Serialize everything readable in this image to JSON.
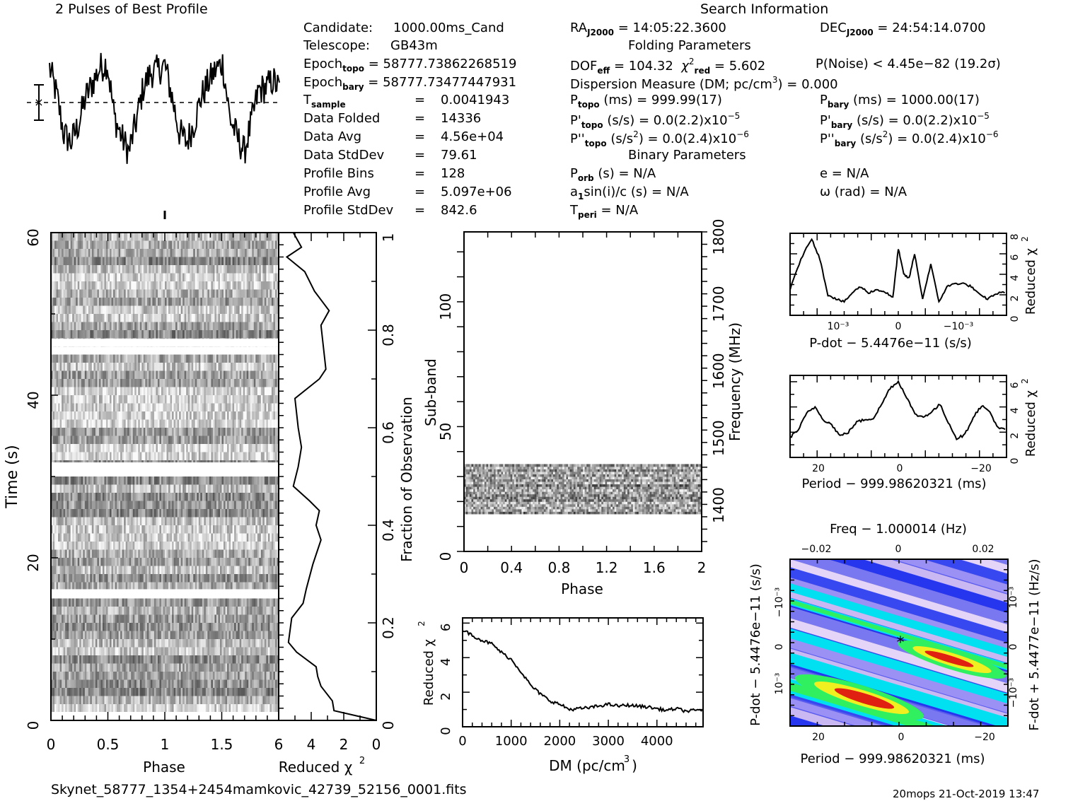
{
  "title_profile": "2 Pulses of Best Profile",
  "search_info": {
    "title": "Search Information",
    "candidate_label": "Candidate:",
    "candidate": "1000.00ms_Cand",
    "telescope_label": "Telescope:",
    "telescope": "GB43m",
    "epoch_topo_label": "Epoch",
    "epoch_topo_sub": "topo",
    "epoch_topo": "= 58777.7386226851​9",
    "epoch_bary_label": "Epoch",
    "epoch_bary_sub": "bary",
    "epoch_bary": "= 58777.7347744793​1",
    "tsample_label": "T",
    "tsample_sub": "sample",
    "tsample": "0.0041943",
    "data_folded_label": "Data Folded",
    "data_folded": "14336",
    "data_avg_label": "Data Avg",
    "data_avg": "4.56e+04",
    "data_stddev_label": "Data StdDev",
    "data_stddev": "79.61",
    "profile_bins_label": "Profile Bins",
    "profile_bins": "128",
    "profile_avg_label": "Profile Avg",
    "profile_avg": "5.097e+06",
    "profile_stddev_label": "Profile StdDev",
    "profile_stddev": "842.6",
    "eq": "=",
    "ra_label": "RA",
    "ra_sub": "J2000",
    "ra": "= 14:05:22.3600",
    "dec_label": "DEC",
    "dec_sub": "J2000",
    "dec": "= 24:54:14.0700",
    "folding_title": "Folding Parameters",
    "dof_label": "DOF",
    "dof_sub": "eff",
    "dof": "= 104.32",
    "chi_label": "χ",
    "chi_sup": "2",
    "chi_sub": "red",
    "chi": "= 5.602",
    "pnoise": "P(Noise) < 4.45e−82  (19.2σ)",
    "dm_text_a": "Dispersion Measure (DM; pc/cm",
    "dm_sup": "3",
    "dm_text_b": ") = 0.000",
    "p_topo_label": "P",
    "p_topo_sub": "topo",
    "p_topo": "(ms) =  999.99(17)",
    "pd_topo_label": "P'",
    "pd_topo_sub": "topo",
    "pd_topo": "(s/s) = 0.0(2.2)x10",
    "pd_topo_exp": "−5",
    "pdd_topo_label": "P''",
    "pdd_topo_sub": "topo",
    "pdd_topo_a": "(s/s",
    "pdd_topo_sup": "2",
    "pdd_topo_b": ") = 0.0(2.4)x10",
    "pdd_topo_exp": "−6",
    "p_bary_label": "P",
    "p_bary_sub": "bary",
    "p_bary": "(ms) =  1000.00(17)",
    "pd_bary_label": "P'",
    "pd_bary_sub": "bary",
    "pd_bary": "(s/s) = 0.0(2.2)x10",
    "pd_bary_exp": "−5",
    "pdd_bary_label": "P''",
    "pdd_bary_sub": "bary",
    "pdd_bary_a": "(s/s",
    "pdd_bary_sup": "2",
    "pdd_bary_b": ") = 0.0(2.4)x10",
    "pdd_bary_exp": "−6",
    "binary_title": "Binary Parameters",
    "porb_label": "P",
    "porb_sub": "orb",
    "porb": "(s) = N/A",
    "a1_label": "a",
    "a1_sub": "1",
    "a1": "sin(i)/c (s) = N/A",
    "tperi_label": "T",
    "tperi_sub": "peri",
    "tperi": "= N/A",
    "e": "e = N/A",
    "omega": "ω (rad) = N/A"
  },
  "footer": {
    "filename": "Skynet_58777_1354+2454mamkovic_42739_52156_0001.fits",
    "stamp": "20mops 21-Oct-2019 13:47"
  },
  "colors": {
    "ink": "#000000",
    "ppdot_low": "#c8b8f0",
    "ppdot_mid": "#2a3cf0",
    "ppdot_cyan": "#00e0f0",
    "ppdot_green": "#30f060",
    "ppdot_yellow": "#f0f020",
    "ppdot_red": "#e02010"
  },
  "chart_data": [
    {
      "name": "profile",
      "type": "line",
      "title": "2 Pulses of Best Profile",
      "xlabel": "",
      "ylabel": "",
      "description": "Two cycles of folded pulse profile (128 bins, repeated), dashed line at mean, error bar at left",
      "x": [
        0,
        0.0625,
        0.125,
        0.1875,
        0.25,
        0.3125,
        0.375,
        0.4375,
        0.5,
        0.5625,
        0.625,
        0.6875,
        0.75,
        0.8125,
        0.875,
        0.9375,
        1.0,
        1.0625,
        1.125,
        1.1875,
        1.25,
        1.3125,
        1.375,
        1.4375,
        1.5,
        1.5625,
        1.625,
        1.6875,
        1.75,
        1.8125,
        1.875,
        1.9375,
        2.0
      ],
      "values": [
        1.4,
        0.3,
        -1.3,
        -1.6,
        -0.9,
        0.2,
        0.8,
        1.4,
        1.6,
        -0.6,
        -1.4,
        -2.0,
        -0.8,
        0.6,
        1.2,
        1.3,
        1.5,
        0.2,
        -1.2,
        -1.6,
        -0.9,
        0.2,
        0.8,
        1.3,
        1.6,
        -0.6,
        -1.4,
        -2.0,
        -0.8,
        0.5,
        0.6,
        0.9,
        0.5
      ],
      "mean_line": 0
    },
    {
      "name": "time-phase",
      "type": "heatmap",
      "xlabel": "Phase",
      "ylabel": "Time (s)",
      "xlim": [
        0,
        2
      ],
      "ylim": [
        0,
        60
      ],
      "xticks": [
        "0",
        "0.5",
        "1",
        "1.5"
      ],
      "yticks": [
        "0",
        "20",
        "40",
        "60"
      ],
      "gaps_s": [
        15.7,
        31.3,
        46.5
      ],
      "colormap": "grayscale"
    },
    {
      "name": "time-chi2",
      "type": "line",
      "xlabel": "Reduced χ²",
      "ylabel": "Fraction of Observation",
      "xlim": [
        6,
        0
      ],
      "ylim": [
        0,
        1
      ],
      "xticks": [
        "6",
        "4",
        "2",
        "0"
      ],
      "yticks": [
        "0",
        "0.2",
        "0.4",
        "0.6",
        "0.8",
        "1"
      ],
      "x": [
        0,
        2.6,
        2.7,
        3.4,
        3.6,
        3.7,
        4.9,
        5.4,
        5.2,
        4.5,
        4.3,
        3.9,
        3.4,
        3.7,
        3.5,
        4.1,
        5.1,
        4.8,
        4.6,
        4.8,
        5.0,
        3.5,
        3.1,
        3.3,
        3.4,
        2.9,
        3.8,
        4.4,
        5.5,
        4.6,
        5.1,
        6.1,
        6.2
      ],
      "y": [
        0,
        0.02,
        0.04,
        0.07,
        0.09,
        0.11,
        0.14,
        0.16,
        0.21,
        0.24,
        0.27,
        0.32,
        0.37,
        0.4,
        0.43,
        0.45,
        0.48,
        0.52,
        0.56,
        0.6,
        0.66,
        0.7,
        0.72,
        0.78,
        0.81,
        0.84,
        0.88,
        0.92,
        0.95,
        0.97,
        1.0,
        1.0,
        1.0
      ]
    },
    {
      "name": "subband-phase",
      "type": "heatmap",
      "xlabel": "Phase",
      "ylabel": "Sub-band",
      "y2label": "Frequency (MHz)",
      "xlim": [
        0,
        2
      ],
      "ylim": [
        0,
        128
      ],
      "xticks": [
        "0",
        "0.4",
        "0.8",
        "1.2",
        "1.6",
        "2"
      ],
      "yticks": [
        "0",
        "50",
        "100"
      ],
      "y2ticks": [
        "1400",
        "1500",
        "1600",
        "1700",
        "1800"
      ],
      "active_subbands": [
        15,
        35
      ],
      "colormap": "grayscale"
    },
    {
      "name": "dm-chi2",
      "type": "line",
      "xlabel": "DM (pc/cm³)",
      "ylabel": "Reduced χ²",
      "xlim": [
        0,
        4950
      ],
      "ylim": [
        0,
        6.3
      ],
      "xticks": [
        "0",
        "1000",
        "2000",
        "3000",
        "4000"
      ],
      "yticks": [
        "0",
        "2",
        "4",
        "6"
      ],
      "x": [
        0,
        200,
        400,
        600,
        800,
        1000,
        1200,
        1400,
        1600,
        1800,
        2000,
        2200,
        2400,
        2600,
        2800,
        3000,
        3200,
        3400,
        3600,
        3800,
        4000,
        4200,
        4400,
        4600,
        4800,
        4950
      ],
      "y": [
        5.6,
        5.3,
        5.0,
        4.8,
        4.3,
        3.9,
        3.2,
        2.4,
        1.9,
        1.5,
        1.3,
        1.0,
        1.05,
        1.1,
        1.2,
        1.3,
        1.2,
        1.25,
        1.2,
        1.15,
        1.05,
        0.95,
        1.05,
        0.9,
        0.95,
        1.0
      ]
    },
    {
      "name": "pdot-chi2",
      "type": "line",
      "xlabel": "P-dot − 5.4476e−11 (s/s)",
      "ylabel": "Reduced χ²",
      "xlim": [
        2.0,
        -2.0
      ],
      "ylim": [
        0,
        8
      ],
      "xticks": [
        "10⁻³",
        "0",
        "−10⁻³"
      ],
      "yticks": [
        "0",
        "2",
        "4",
        "6",
        "8"
      ],
      "x": [
        2.0,
        1.8,
        1.6,
        1.45,
        1.3,
        1.15,
        1.0,
        0.85,
        0.7,
        0.55,
        0.4,
        0.25,
        0.1,
        0.0,
        -0.1,
        -0.2,
        -0.3,
        -0.45,
        -0.6,
        -0.75,
        -0.9,
        -1.05,
        -1.2,
        -1.35,
        -1.5,
        -1.65,
        -1.8,
        -2.0
      ],
      "y": [
        2.5,
        5.5,
        7.5,
        5.5,
        2.0,
        1.6,
        1.3,
        2.2,
        2.8,
        2.2,
        2.5,
        2.3,
        1.7,
        6.5,
        4.0,
        3.6,
        6.0,
        1.6,
        5.0,
        1.3,
        2.8,
        3.1,
        3.1,
        2.8,
        2.0,
        1.6,
        2.1,
        2.3
      ]
    },
    {
      "name": "period-chi2",
      "type": "line",
      "xlabel": "Period − 999.98620321 (ms)",
      "ylabel": "Reduced χ²",
      "xlim": [
        26,
        -26
      ],
      "ylim": [
        0,
        6.5
      ],
      "xticks": [
        "20",
        "0",
        "−20"
      ],
      "yticks": [
        "0",
        "2",
        "4",
        "6"
      ],
      "x": [
        26,
        24,
        22,
        20,
        18,
        16,
        14,
        12,
        10,
        8,
        6,
        4,
        2,
        0,
        -2,
        -4,
        -6,
        -8,
        -10,
        -12,
        -14,
        -16,
        -18,
        -20,
        -22,
        -24,
        -26
      ],
      "y": [
        1.6,
        2.2,
        3.5,
        4.0,
        3.0,
        2.6,
        1.7,
        2.0,
        2.8,
        3.0,
        3.1,
        4.2,
        5.5,
        6.0,
        4.8,
        3.4,
        3.2,
        3.6,
        4.2,
        2.8,
        1.5,
        1.8,
        3.2,
        4.1,
        3.6,
        2.3,
        2.2
      ]
    },
    {
      "name": "p-pdot-plane",
      "type": "heatmap",
      "xlabel": "Period − 999.98620321 (ms)",
      "x2label": "Freq − 1.000014 (Hz)",
      "ylabel": "P-dot − 5.4476e−11 (s/s)",
      "y2label": "F-dot + 5.4477e−11 (Hz/s)",
      "xticks": [
        "20",
        "0",
        "−20"
      ],
      "x2ticks": [
        "−0.02",
        "0",
        "0.02"
      ],
      "yticks": [
        "−10⁻³",
        "0",
        "10⁻³"
      ],
      "y2ticks": [
        "10⁻³",
        "0",
        "−10⁻³"
      ],
      "best_marker": [
        0,
        0
      ],
      "colormap": "rainbow"
    }
  ]
}
